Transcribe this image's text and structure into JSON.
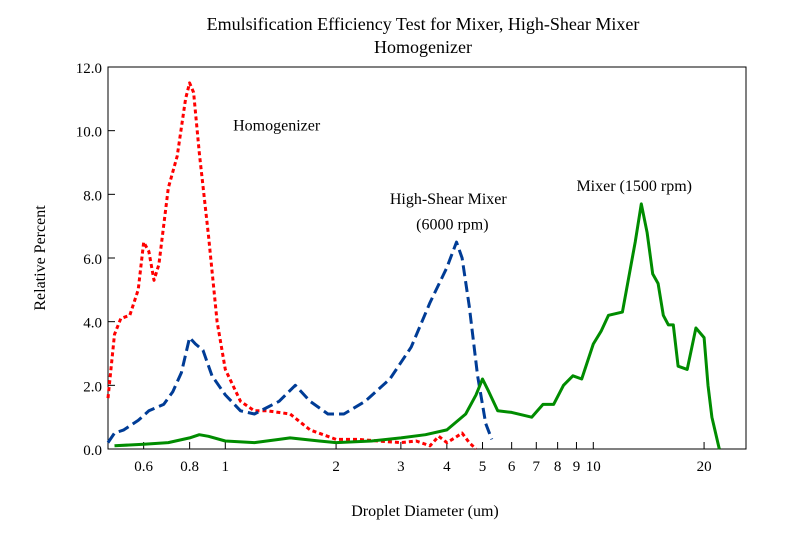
{
  "chart_data": {
    "type": "line",
    "title": "Emulsification Efficiency Test for Mixer,  High-Shear Mixer",
    "subtitle": "Homogenizer",
    "xlabel": "Droplet Diameter (um)",
    "ylabel": "Relative Percent",
    "x_scale": "log",
    "xlim": [
      0.48,
      26
    ],
    "ylim": [
      0,
      12
    ],
    "grid": false,
    "y_ticks": [
      {
        "value": 0,
        "label": "0.0"
      },
      {
        "value": 2,
        "label": "2.0"
      },
      {
        "value": 4,
        "label": "4.0"
      },
      {
        "value": 6,
        "label": "6.0"
      },
      {
        "value": 8,
        "label": "8.0"
      },
      {
        "value": 10,
        "label": "10.0"
      },
      {
        "value": 12,
        "label": "12.0"
      }
    ],
    "x_ticks": [
      {
        "value": 0.6,
        "label": "0.6"
      },
      {
        "value": 0.8,
        "label": "0.8"
      },
      {
        "value": 1,
        "label": "1"
      },
      {
        "value": 2,
        "label": "2"
      },
      {
        "value": 3,
        "label": "3"
      },
      {
        "value": 4,
        "label": "4"
      },
      {
        "value": 5,
        "label": "5"
      },
      {
        "value": 6,
        "label": "6"
      },
      {
        "value": 7,
        "label": "7"
      },
      {
        "value": 8,
        "label": "8"
      },
      {
        "value": 9,
        "label": "9"
      },
      {
        "value": 10,
        "label": "10"
      },
      {
        "value": 20,
        "label": "20"
      }
    ],
    "series": [
      {
        "name": "Homogenizer",
        "color": "#ff0000",
        "style": "dotted",
        "x": [
          0.48,
          0.5,
          0.52,
          0.55,
          0.58,
          0.6,
          0.62,
          0.64,
          0.66,
          0.7,
          0.74,
          0.78,
          0.8,
          0.82,
          0.85,
          0.9,
          0.95,
          1.0,
          1.1,
          1.2,
          1.3,
          1.5,
          1.7,
          2.0,
          2.3,
          2.6,
          3.0,
          3.3,
          3.6,
          3.8,
          4.0,
          4.2,
          4.4,
          4.6,
          4.8
        ],
        "y": [
          1.6,
          3.6,
          4.1,
          4.2,
          5.0,
          6.5,
          6.2,
          5.3,
          5.8,
          8.2,
          9.2,
          11.0,
          11.5,
          11.2,
          9.3,
          6.7,
          4.0,
          2.5,
          1.5,
          1.2,
          1.2,
          1.1,
          0.6,
          0.3,
          0.3,
          0.25,
          0.2,
          0.25,
          0.1,
          0.4,
          0.2,
          0.35,
          0.5,
          0.2,
          0.0
        ]
      },
      {
        "name": "High-Shear Mixer (6000 rpm)",
        "color": "#003c96",
        "style": "dashed",
        "x": [
          0.48,
          0.5,
          0.53,
          0.58,
          0.62,
          0.68,
          0.72,
          0.76,
          0.8,
          0.83,
          0.87,
          0.92,
          1.0,
          1.1,
          1.2,
          1.4,
          1.55,
          1.7,
          1.9,
          2.1,
          2.4,
          2.8,
          3.2,
          3.6,
          4.0,
          4.25,
          4.4,
          4.6,
          4.85,
          5.1,
          5.3
        ],
        "y": [
          0.2,
          0.5,
          0.6,
          0.9,
          1.2,
          1.4,
          1.8,
          2.4,
          3.5,
          3.3,
          3.1,
          2.3,
          1.7,
          1.2,
          1.1,
          1.5,
          2.0,
          1.5,
          1.1,
          1.1,
          1.5,
          2.2,
          3.2,
          4.6,
          5.7,
          6.5,
          6.0,
          4.5,
          2.3,
          0.8,
          0.3
        ]
      },
      {
        "name": "Mixer (1500 rpm)",
        "color": "#008c00",
        "style": "solid",
        "x": [
          0.5,
          0.6,
          0.7,
          0.8,
          0.85,
          0.9,
          1.0,
          1.2,
          1.4,
          1.5,
          1.8,
          2.0,
          2.5,
          3.0,
          3.5,
          4.0,
          4.5,
          4.8,
          5.0,
          5.2,
          5.5,
          6.0,
          6.8,
          7.3,
          7.8,
          8.3,
          8.8,
          9.3,
          10.0,
          10.5,
          11.0,
          12.0,
          13.0,
          13.5,
          14.0,
          14.5,
          15.0,
          15.5,
          16.0,
          16.5,
          17.0,
          18.0,
          19.0,
          20.0,
          20.5,
          21.0,
          22.0
        ],
        "y": [
          0.1,
          0.15,
          0.2,
          0.35,
          0.45,
          0.4,
          0.25,
          0.2,
          0.3,
          0.35,
          0.25,
          0.2,
          0.25,
          0.35,
          0.45,
          0.6,
          1.1,
          1.7,
          2.2,
          1.8,
          1.2,
          1.15,
          1.0,
          1.4,
          1.4,
          2.0,
          2.3,
          2.2,
          3.3,
          3.7,
          4.2,
          4.3,
          6.5,
          7.7,
          6.8,
          5.5,
          5.2,
          4.2,
          3.9,
          3.9,
          2.6,
          2.5,
          3.8,
          3.5,
          2.0,
          1.0,
          0.0
        ]
      }
    ],
    "annotations": [
      {
        "text": "Homogenizer",
        "x": 1.05,
        "y": 10.0
      },
      {
        "text": "High-Shear Mixer",
        "x": 2.8,
        "y": 7.7
      },
      {
        "text": "(6000 rpm)",
        "x": 3.3,
        "y": 6.9
      },
      {
        "text": "Mixer (1500 rpm)",
        "x": 9.0,
        "y": 8.1
      }
    ]
  }
}
